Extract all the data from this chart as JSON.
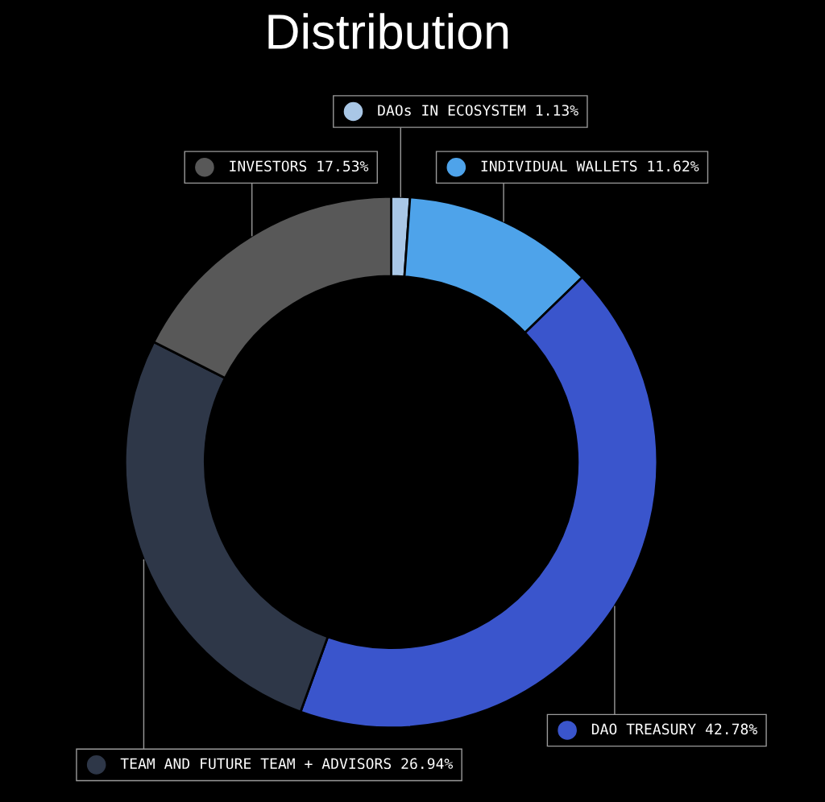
{
  "chart_data": {
    "type": "donut",
    "title": "Distribution",
    "categories": [
      "DAOs IN ECOSYSTEM",
      "INDIVIDUAL WALLETS",
      "DAO TREASURY",
      "TEAM AND FUTURE TEAM + ADVISORS",
      "INVESTORS"
    ],
    "values": [
      1.13,
      11.62,
      42.78,
      26.94,
      17.53
    ],
    "colors": [
      "#a9c7e6",
      "#4ea3ea",
      "#3a55cc",
      "#2e3748",
      "#585858"
    ],
    "value_labels": [
      "1.13%",
      "11.62%",
      "42.78%",
      "26.94%",
      "17.53%"
    ],
    "legend": "center"
  }
}
